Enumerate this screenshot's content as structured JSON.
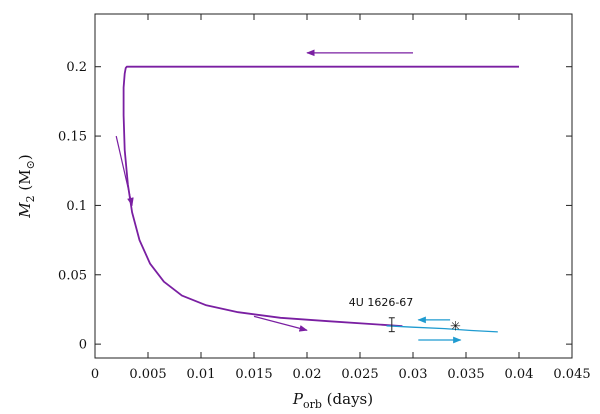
{
  "chart_data": {
    "type": "line",
    "xlabel_main": "P",
    "xlabel_sub": "orb",
    "xlabel_unit": " (days)",
    "ylabel_main": "M",
    "ylabel_sub": "2",
    "ylabel_unit": " (M",
    "ylabel_close": ")",
    "sun_symbol": "⊙",
    "xlim": [
      0,
      0.045
    ],
    "ylim": [
      -0.01,
      0.238
    ],
    "x_ticks": [
      0,
      0.005,
      0.01,
      0.015,
      0.02,
      0.025,
      0.03,
      0.035,
      0.04,
      0.045
    ],
    "x_tick_labels": [
      "0",
      "0.005",
      "0.01",
      "0.015",
      "0.02",
      "0.025",
      "0.03",
      "0.035",
      "0.04",
      "0.045"
    ],
    "y_ticks": [
      0,
      0.05,
      0.1,
      0.15,
      0.2
    ],
    "y_tick_labels": [
      "0",
      "0.05",
      "0.1",
      "0.15",
      "0.2"
    ],
    "grid": false,
    "series": [
      {
        "color": "#7a1fa2",
        "x": [
          0.04,
          0.03,
          0.02,
          0.01,
          0.005,
          0.003,
          0.0029,
          0.0028,
          0.0027,
          0.0027,
          0.0028,
          0.0031,
          0.0035,
          0.0042,
          0.0052,
          0.0065,
          0.0082,
          0.0105,
          0.0135,
          0.0175,
          0.022,
          0.026,
          0.029
        ],
        "y": [
          0.2,
          0.2,
          0.2,
          0.2,
          0.2,
          0.2,
          0.199,
          0.195,
          0.185,
          0.165,
          0.14,
          0.115,
          0.095,
          0.075,
          0.058,
          0.045,
          0.035,
          0.028,
          0.023,
          0.019,
          0.0165,
          0.0145,
          0.013
        ]
      },
      {
        "color": "#1f9bd0",
        "x": [
          0.0275,
          0.03,
          0.033,
          0.0355,
          0.038
        ],
        "y": [
          0.0132,
          0.0122,
          0.0112,
          0.0098,
          0.0088
        ]
      }
    ],
    "observation": {
      "label": "4U 1626-67",
      "x": 0.028,
      "y": 0.014,
      "y_err": 0.005,
      "marker_x": 0.034,
      "marker_y": 0.013,
      "marker_symbol": "✳"
    },
    "arrows": [
      {
        "color": "#7a1fa2",
        "from": [
          0.03,
          0.21
        ],
        "to": [
          0.02,
          0.21
        ]
      },
      {
        "color": "#7a1fa2",
        "from": [
          0.002,
          0.15
        ],
        "to": [
          0.0035,
          0.1
        ]
      },
      {
        "color": "#7a1fa2",
        "from": [
          0.015,
          0.02
        ],
        "to": [
          0.02,
          0.01
        ]
      },
      {
        "color": "#1f9bd0",
        "from": [
          0.0335,
          0.0175
        ],
        "to": [
          0.0305,
          0.0175
        ]
      },
      {
        "color": "#1f9bd0",
        "from": [
          0.0305,
          0.003
        ],
        "to": [
          0.0345,
          0.003
        ]
      }
    ]
  }
}
